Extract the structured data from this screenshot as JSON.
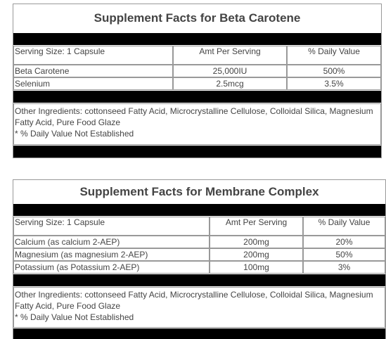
{
  "tables": [
    {
      "title": "Supplement Facts for Beta Carotene",
      "header": [
        "Serving Size: 1 Capsule",
        "Amt Per Serving",
        "% Daily Value"
      ],
      "rows": [
        [
          "Beta Carotene",
          "25,000IU",
          "500%"
        ],
        [
          "Selenium",
          "2.5mcg",
          "3.5%"
        ]
      ],
      "ingredients": "Other Ingredients: cottonseed Fatty Acid, Microcrystalline Cellulose, Colloidal Silica, Magnesium Fatty Acid, Pure Food Glaze",
      "note": "* % Daily Value Not Established"
    },
    {
      "title": "Supplement Facts for Membrane Complex",
      "header": [
        "Serving Size: 1 Capsule",
        "Amt Per Serving",
        "% Daily Value"
      ],
      "rows": [
        [
          "Calcium (as calcium 2-AEP)",
          "200mg",
          "20%"
        ],
        [
          "Magnesium (as magnesium 2-AEP)",
          "200mg",
          "50%"
        ],
        [
          "Potassium (as Potassium 2-AEP)",
          "100mg",
          "3%"
        ]
      ],
      "ingredients": "Other Ingredients: cottonseed Fatty Acid, Microcrystalline Cellulose, Colloidal Silica, Magnesium Fatty Acid, Pure Food Glaze",
      "note": "* % Daily Value Not Established"
    }
  ]
}
